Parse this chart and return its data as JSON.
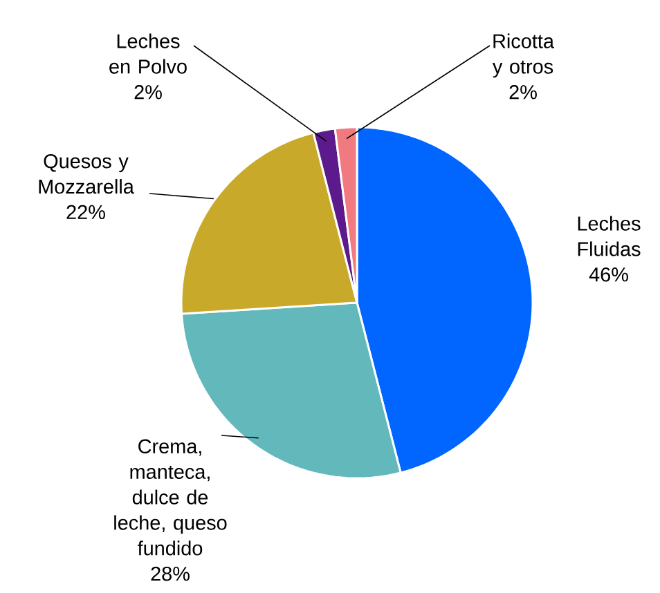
{
  "chart_data": {
    "type": "pie",
    "categories": [
      "Leches Fluidas",
      "Crema, manteca, dulce de leche, queso fundido",
      "Quesos y Mozzarella",
      "Leches en Polvo",
      "Ricotta y otros"
    ],
    "values": [
      46,
      28,
      22,
      2,
      2
    ],
    "value_labels": [
      "46%",
      "28%",
      "22%",
      "2%",
      "2%"
    ],
    "colors": [
      "#0066ff",
      "#62b8bb",
      "#c9a92a",
      "#5c1a8c",
      "#f07a80"
    ],
    "legend": false
  }
}
